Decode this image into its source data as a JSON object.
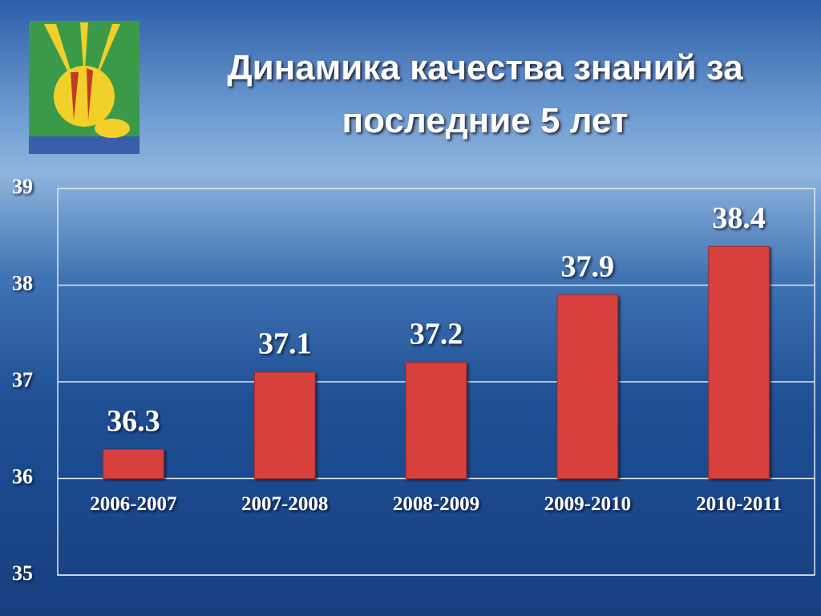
{
  "chart_data": {
    "type": "bar",
    "title": "Динамика качества знаний за последние 5 лет",
    "categories": [
      "2006-2007",
      "2007-2008",
      "2008-2009",
      "2009-2010",
      "2010-2011"
    ],
    "values": [
      36.3,
      37.1,
      37.2,
      37.9,
      38.4
    ],
    "color": "#d8403c",
    "ylim": [
      35,
      39
    ],
    "yticks": [
      35,
      36,
      37,
      38,
      39
    ],
    "x_axis_at": 36,
    "grid": true
  }
}
